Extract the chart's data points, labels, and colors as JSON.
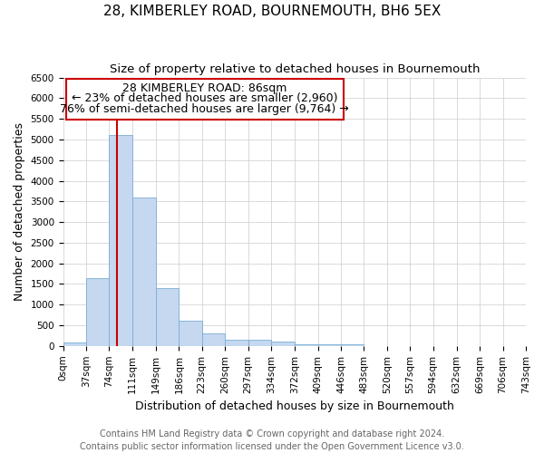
{
  "title": "28, KIMBERLEY ROAD, BOURNEMOUTH, BH6 5EX",
  "subtitle": "Size of property relative to detached houses in Bournemouth",
  "xlabel": "Distribution of detached houses by size in Bournemouth",
  "ylabel": "Number of detached properties",
  "footer_line1": "Contains HM Land Registry data © Crown copyright and database right 2024.",
  "footer_line2": "Contains public sector information licensed under the Open Government Licence v3.0.",
  "bin_edges": [
    0,
    37,
    74,
    111,
    149,
    186,
    223,
    260,
    297,
    334,
    372,
    409,
    446,
    483,
    520,
    557,
    594,
    632,
    669,
    706,
    743
  ],
  "bar_heights": [
    75,
    1650,
    5100,
    3600,
    1400,
    620,
    300,
    160,
    150,
    100,
    50,
    40,
    50,
    0,
    0,
    0,
    0,
    0,
    0,
    0
  ],
  "bar_color": "#c5d8f0",
  "bar_edge_color": "#7aadd4",
  "property_size": 86,
  "vline_color": "#cc0000",
  "annotation_line1": "28 KIMBERLEY ROAD: 86sqm",
  "annotation_line2": "← 23% of detached houses are smaller (2,960)",
  "annotation_line3": "76% of semi-detached houses are larger (9,764) →",
  "annotation_box_color": "#ffffff",
  "annotation_box_edge": "#cc0000",
  "ylim": [
    0,
    6500
  ],
  "yticks": [
    0,
    500,
    1000,
    1500,
    2000,
    2500,
    3000,
    3500,
    4000,
    4500,
    5000,
    5500,
    6000,
    6500
  ],
  "grid_color": "#cccccc",
  "bg_color": "#ffffff",
  "title_fontsize": 11,
  "subtitle_fontsize": 9.5,
  "label_fontsize": 9,
  "tick_fontsize": 7.5,
  "footer_fontsize": 7,
  "annotation_fontsize": 9
}
